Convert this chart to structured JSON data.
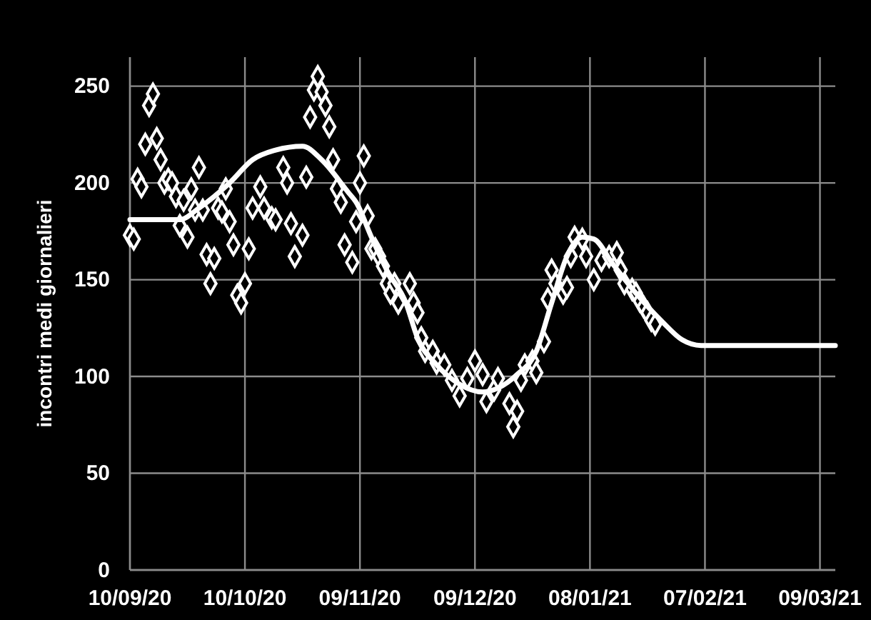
{
  "chart_data": {
    "type": "scatter",
    "ylabel": "incontri medi giornalieri",
    "xlim": [
      "2020-09-10",
      "2021-03-13"
    ],
    "ylim": [
      0,
      265
    ],
    "xticks": [
      {
        "value": "2020-09-10",
        "label": "10/09/20"
      },
      {
        "value": "2020-10-10",
        "label": "10/10/20"
      },
      {
        "value": "2020-11-09",
        "label": "09/11/20"
      },
      {
        "value": "2020-12-09",
        "label": "09/12/20"
      },
      {
        "value": "2021-01-08",
        "label": "08/01/21"
      },
      {
        "value": "2021-02-07",
        "label": "07/02/21"
      },
      {
        "value": "2021-03-09",
        "label": "09/03/21"
      }
    ],
    "yticks": [
      0,
      50,
      100,
      150,
      200,
      250
    ],
    "grid": true,
    "series": [
      {
        "color": "#ffffff",
        "marker": "diamond",
        "x": [
          "2020-09-10",
          "2020-09-11",
          "2020-09-12",
          "2020-09-13",
          "2020-09-14",
          "2020-09-15",
          "2020-09-16",
          "2020-09-17",
          "2020-09-18",
          "2020-09-19",
          "2020-09-20",
          "2020-09-21",
          "2020-09-22",
          "2020-09-23",
          "2020-09-24",
          "2020-09-25",
          "2020-09-26",
          "2020-09-27",
          "2020-09-28",
          "2020-09-29",
          "2020-09-30",
          "2020-10-01",
          "2020-10-02",
          "2020-10-03",
          "2020-10-04",
          "2020-10-05",
          "2020-10-06",
          "2020-10-07",
          "2020-10-08",
          "2020-10-09",
          "2020-10-10",
          "2020-10-11",
          "2020-10-12",
          "2020-10-14",
          "2020-10-15",
          "2020-10-17",
          "2020-10-18",
          "2020-10-20",
          "2020-10-21",
          "2020-10-22",
          "2020-10-23",
          "2020-10-25",
          "2020-10-26",
          "2020-10-27",
          "2020-10-28",
          "2020-10-29",
          "2020-10-30",
          "2020-10-31",
          "2020-11-01",
          "2020-11-02",
          "2020-11-03",
          "2020-11-04",
          "2020-11-05",
          "2020-11-07",
          "2020-11-08",
          "2020-11-09",
          "2020-11-10",
          "2020-11-11",
          "2020-11-12",
          "2020-11-13",
          "2020-11-14",
          "2020-11-15",
          "2020-11-16",
          "2020-11-17",
          "2020-11-18",
          "2020-11-19",
          "2020-11-22",
          "2020-11-23",
          "2020-11-24",
          "2020-11-25",
          "2020-11-26",
          "2020-11-28",
          "2020-11-29",
          "2020-12-01",
          "2020-12-03",
          "2020-12-05",
          "2020-12-07",
          "2020-12-09",
          "2020-12-11",
          "2020-12-12",
          "2020-12-14",
          "2020-12-15",
          "2020-12-18",
          "2020-12-19",
          "2020-12-20",
          "2020-12-21",
          "2020-12-22",
          "2020-12-24",
          "2020-12-25",
          "2020-12-27",
          "2020-12-28",
          "2020-12-29",
          "2020-12-30",
          "2021-01-01",
          "2021-01-02",
          "2021-01-03",
          "2021-01-04",
          "2021-01-06",
          "2021-01-07",
          "2021-01-09",
          "2021-01-11",
          "2021-01-13",
          "2021-01-15",
          "2021-01-16",
          "2021-01-17",
          "2021-01-19",
          "2021-01-20",
          "2021-01-21",
          "2021-01-22",
          "2021-01-23",
          "2021-01-24",
          "2021-01-25"
        ],
        "values": [
          173,
          171,
          202,
          198,
          220,
          240,
          246,
          223,
          212,
          200,
          202,
          200,
          193,
          178,
          191,
          172,
          197,
          186,
          208,
          186,
          163,
          148,
          161,
          187,
          185,
          197,
          180,
          168,
          142,
          138,
          148,
          166,
          187,
          198,
          187,
          182,
          181,
          208,
          200,
          179,
          162,
          173,
          203,
          234,
          248,
          255,
          247,
          240,
          229,
          212,
          197,
          190,
          168,
          159,
          180,
          200,
          214,
          183,
          166,
          166,
          162,
          157,
          148,
          143,
          148,
          138,
          148,
          138,
          133,
          120,
          113,
          113,
          107,
          106,
          98,
          90,
          99,
          108,
          101,
          87,
          93,
          99,
          86,
          74,
          82,
          98,
          106,
          108,
          102,
          118,
          140,
          155,
          148,
          143,
          146,
          162,
          172,
          171,
          162,
          150,
          160,
          162,
          164,
          155,
          148,
          145,
          143,
          139,
          136,
          133,
          129,
          127
        ]
      },
      {
        "type": "line",
        "color": "#ffffff",
        "marker": "none",
        "line_style": "solid",
        "x": [
          "2020-09-10",
          "2020-09-23",
          "2020-09-28",
          "2020-10-06",
          "2020-10-12",
          "2020-10-18",
          "2020-10-25",
          "2020-10-30",
          "2020-11-06",
          "2020-11-08",
          "2020-11-12",
          "2020-11-16",
          "2020-11-21",
          "2020-11-24",
          "2020-11-29",
          "2020-12-05",
          "2020-12-11",
          "2020-12-15",
          "2020-12-20",
          "2020-12-25",
          "2020-12-29",
          "2021-01-02",
          "2021-01-06",
          "2021-01-09",
          "2021-01-14",
          "2021-01-20",
          "2021-01-27",
          "2021-02-01",
          "2021-02-06",
          "2021-02-17",
          "2021-03-13"
        ],
        "values": [
          181,
          181,
          187,
          200,
          212,
          217,
          219,
          212,
          195,
          190,
          172,
          155,
          138,
          120,
          106,
          96,
          92,
          94,
          101,
          113,
          138,
          162,
          172,
          171,
          158,
          143,
          128,
          119,
          116,
          116,
          116
        ]
      }
    ]
  }
}
